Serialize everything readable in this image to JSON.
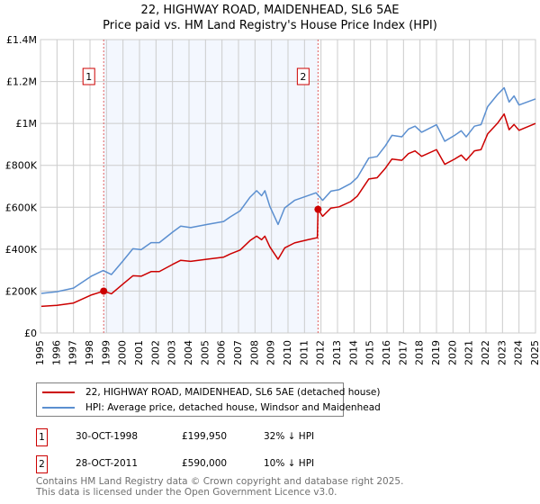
{
  "title": "22, HIGHWAY ROAD, MAIDENHEAD, SL6 5AE",
  "subtitle": "Price paid vs. HM Land Registry's House Price Index (HPI)",
  "chart_data": {
    "type": "line",
    "xlim": [
      1995,
      2025
    ],
    "ylim": [
      0,
      1400000
    ],
    "x_ticks": [
      "1995",
      "1996",
      "1997",
      "1998",
      "1999",
      "2000",
      "2001",
      "2002",
      "2003",
      "2004",
      "2005",
      "2006",
      "2007",
      "2008",
      "2009",
      "2010",
      "2011",
      "2012",
      "2013",
      "2014",
      "2015",
      "2016",
      "2017",
      "2018",
      "2019",
      "2020",
      "2021",
      "2022",
      "2023",
      "2024",
      "2025"
    ],
    "y_ticks": [
      {
        "v": 0,
        "label": "£0"
      },
      {
        "v": 200000,
        "label": "£200K"
      },
      {
        "v": 400000,
        "label": "£400K"
      },
      {
        "v": 600000,
        "label": "£600K"
      },
      {
        "v": 800000,
        "label": "£800K"
      },
      {
        "v": 1000000,
        "label": "£1M"
      },
      {
        "v": 1200000,
        "label": "£1.2M"
      },
      {
        "v": 1400000,
        "label": "£1.4M"
      }
    ],
    "grid": true,
    "series": [
      {
        "name": "22, HIGHWAY ROAD, MAIDENHEAD, SL6 5AE (detached house)",
        "color": "#cc0000",
        "points": [
          [
            1995.05,
            127
          ],
          [
            1996,
            132
          ],
          [
            1997,
            143
          ],
          [
            1998.1,
            182
          ],
          [
            1998.83,
            199.95
          ],
          [
            1999.3,
            187
          ],
          [
            2000,
            234
          ],
          [
            2000.6,
            273
          ],
          [
            2001.1,
            271
          ],
          [
            2001.7,
            293
          ],
          [
            2002.2,
            293
          ],
          [
            2003,
            327
          ],
          [
            2003.5,
            347
          ],
          [
            2004.1,
            342
          ],
          [
            2005.1,
            352
          ],
          [
            2006.1,
            362
          ],
          [
            2006.5,
            377
          ],
          [
            2007.1,
            396
          ],
          [
            2007.7,
            441
          ],
          [
            2008.1,
            462
          ],
          [
            2008.4,
            445
          ],
          [
            2008.6,
            462
          ],
          [
            2008.9,
            411
          ],
          [
            2009.4,
            352
          ],
          [
            2009.8,
            406
          ],
          [
            2010.4,
            430
          ],
          [
            2011.2,
            445
          ],
          [
            2011.78,
            455
          ],
          [
            2011.82,
            590
          ],
          [
            2012.1,
            557
          ],
          [
            2012.6,
            596
          ],
          [
            2013.1,
            602
          ],
          [
            2013.8,
            627
          ],
          [
            2014.2,
            653
          ],
          [
            2014.9,
            735
          ],
          [
            2015.4,
            741
          ],
          [
            2015.9,
            786
          ],
          [
            2016.3,
            830
          ],
          [
            2016.9,
            824
          ],
          [
            2017.3,
            856
          ],
          [
            2017.7,
            869
          ],
          [
            2018.1,
            843
          ],
          [
            2019,
            875
          ],
          [
            2019.5,
            805
          ],
          [
            2020.1,
            830
          ],
          [
            2020.5,
            849
          ],
          [
            2020.8,
            824
          ],
          [
            2021.3,
            869
          ],
          [
            2021.7,
            875
          ],
          [
            2022.1,
            950
          ],
          [
            2022.7,
            1001
          ],
          [
            2023.1,
            1045
          ],
          [
            2023.4,
            970
          ],
          [
            2023.7,
            995
          ],
          [
            2024,
            967
          ],
          [
            2025,
            1000
          ]
        ]
      },
      {
        "name": "HPI: Average price, detached house, Windsor and Maidenhead",
        "color": "#5b8fd0",
        "points": [
          [
            1995.05,
            189
          ],
          [
            1996,
            197
          ],
          [
            1997,
            214
          ],
          [
            1998.1,
            272
          ],
          [
            1998.8,
            298
          ],
          [
            1999.3,
            279
          ],
          [
            2000,
            344
          ],
          [
            2000.6,
            402
          ],
          [
            2001.1,
            398
          ],
          [
            2001.7,
            431
          ],
          [
            2002.2,
            431
          ],
          [
            2003,
            481
          ],
          [
            2003.5,
            510
          ],
          [
            2004.1,
            503
          ],
          [
            2005.1,
            518
          ],
          [
            2006.1,
            532
          ],
          [
            2006.5,
            554
          ],
          [
            2007.1,
            583
          ],
          [
            2007.7,
            648
          ],
          [
            2008.1,
            679
          ],
          [
            2008.4,
            655
          ],
          [
            2008.6,
            679
          ],
          [
            2008.9,
            604
          ],
          [
            2009.4,
            518
          ],
          [
            2009.8,
            597
          ],
          [
            2010.4,
            633
          ],
          [
            2011.2,
            655
          ],
          [
            2011.7,
            669
          ],
          [
            2012.1,
            633
          ],
          [
            2012.6,
            677
          ],
          [
            2013.1,
            684
          ],
          [
            2013.8,
            713
          ],
          [
            2014.2,
            742
          ],
          [
            2014.9,
            835
          ],
          [
            2015.4,
            842
          ],
          [
            2015.9,
            893
          ],
          [
            2016.3,
            943
          ],
          [
            2016.9,
            936
          ],
          [
            2017.3,
            973
          ],
          [
            2017.7,
            987
          ],
          [
            2018.1,
            958
          ],
          [
            2019,
            994
          ],
          [
            2019.5,
            915
          ],
          [
            2020.1,
            943
          ],
          [
            2020.5,
            965
          ],
          [
            2020.8,
            936
          ],
          [
            2021.3,
            987
          ],
          [
            2021.7,
            994
          ],
          [
            2022.1,
            1080
          ],
          [
            2022.7,
            1138
          ],
          [
            2023.1,
            1170
          ],
          [
            2023.4,
            1102
          ],
          [
            2023.7,
            1131
          ],
          [
            2024,
            1088
          ],
          [
            2025,
            1117
          ]
        ]
      }
    ],
    "units_note": "values in £ thousands",
    "annotations": [
      {
        "label": "1",
        "x": 1998.83,
        "y": 199.95
      },
      {
        "label": "2",
        "x": 2011.82,
        "y": 590
      }
    ]
  },
  "legend": {
    "property": "22, HIGHWAY ROAD, MAIDENHEAD, SL6 5AE (detached house)",
    "hpi": "HPI: Average price, detached house, Windsor and Maidenhead"
  },
  "sales": [
    {
      "num": "1",
      "date": "30-OCT-1998",
      "price": "£199,950",
      "hpi": "32% ↓ HPI"
    },
    {
      "num": "2",
      "date": "28-OCT-2011",
      "price": "£590,000",
      "hpi": "10% ↓ HPI"
    }
  ],
  "footer": {
    "line1": "Contains HM Land Registry data © Crown copyright and database right 2025.",
    "line2": "This data is licensed under the Open Government Licence v3.0."
  }
}
